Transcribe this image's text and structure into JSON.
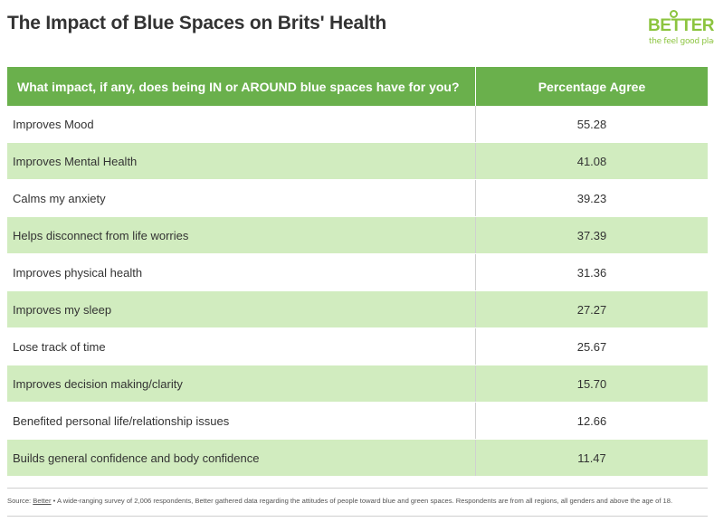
{
  "title": "The Impact of Blue Spaces on Brits' Health",
  "logo": {
    "word": "BETTER",
    "tagline": "the feel good place"
  },
  "chart_data": {
    "type": "table",
    "columns": [
      "What impact, if any, does being IN or AROUND blue spaces have for you?",
      "Percentage Agree"
    ],
    "rows": [
      {
        "label": "Improves Mood",
        "value": "55.28"
      },
      {
        "label": "Improves Mental Health",
        "value": "41.08"
      },
      {
        "label": "Calms my anxiety",
        "value": "39.23"
      },
      {
        "label": "Helps disconnect from life worries",
        "value": "37.39"
      },
      {
        "label": "Improves physical health",
        "value": "31.36"
      },
      {
        "label": "Improves my sleep",
        "value": "27.27"
      },
      {
        "label": "Lose track of time",
        "value": "25.67"
      },
      {
        "label": "Improves decision making/clarity",
        "value": "15.70"
      },
      {
        "label": "Benefited personal life/relationship issues",
        "value": "12.66"
      },
      {
        "label": "Builds general confidence and body confidence",
        "value": "11.47"
      }
    ]
  },
  "footer": {
    "source_prefix": "Source: ",
    "source_link": "Better",
    "source_text": " • A wide-ranging survey of 2,006 respondents, Better gathered data regarding the attitudes of people toward blue and green spaces. Respondents are from all regions, all genders and above the age of 18."
  },
  "colors": {
    "header_bg": "#6ab04c",
    "alt_row_bg": "#d1ecbf",
    "logo": "#8cc43f"
  }
}
